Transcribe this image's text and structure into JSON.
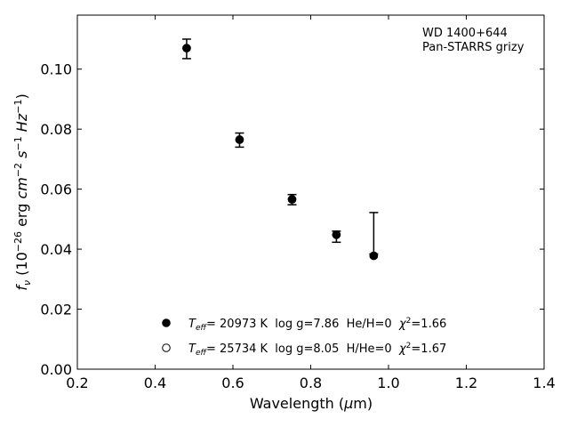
{
  "chart_data": {
    "type": "scatter",
    "annotation": [
      "WD 1400+644",
      "Pan-STARRS grizy"
    ],
    "xlabel": "Wavelength (μm)",
    "ylabel": "f_ν (10^-26 erg cm^-2 s^-1 Hz^-1)",
    "xlim": [
      0.2,
      1.4
    ],
    "ylim": [
      0.0,
      0.118
    ],
    "xticks": [
      "0.2",
      "0.4",
      "0.6",
      "0.8",
      "1.0",
      "1.2",
      "1.4"
    ],
    "yticks": [
      "0.00",
      "0.02",
      "0.04",
      "0.06",
      "0.08",
      "0.10"
    ],
    "grid": false,
    "legend_position": "lower-center",
    "observed": {
      "x": [
        0.481,
        0.617,
        0.752,
        0.866,
        0.962
      ],
      "y": [
        0.107,
        0.0765,
        0.0566,
        0.0448,
        0.0384
      ],
      "err_low": [
        0.0035,
        0.0025,
        0.0018,
        0.0025,
        0.0
      ],
      "err_high": [
        0.003,
        0.0022,
        0.0016,
        0.0012,
        0.0138
      ]
    },
    "series": [
      {
        "name": "T_eff= 20973 K  log g=7.86  He/H=0  χ²=1.66",
        "marker": "filled-circle",
        "x": [
          0.481,
          0.617,
          0.752,
          0.866,
          0.962
        ],
        "y": [
          0.107,
          0.0765,
          0.0566,
          0.0448,
          0.0378
        ]
      },
      {
        "name": "T_eff= 25734 K  log g=8.05  H/He=0  χ²=1.67",
        "marker": "open-circle",
        "x": [
          0.481,
          0.617,
          0.752,
          0.866,
          0.962
        ],
        "y": [
          0.107,
          0.0765,
          0.0566,
          0.0448,
          0.0378
        ]
      }
    ],
    "legend": [
      {
        "pre": "",
        "italic": "T",
        "sub": "eff",
        "post": "= 20973 K  log g=7.86  He/H=0  ",
        "chi": "χ",
        "sup": "2",
        "tail": "=1.66"
      },
      {
        "pre": "",
        "italic": "T",
        "sub": "eff",
        "post": "= 25734 K  log g=8.05  H/He=0  ",
        "chi": "χ",
        "sup": "2",
        "tail": "=1.67"
      }
    ]
  }
}
